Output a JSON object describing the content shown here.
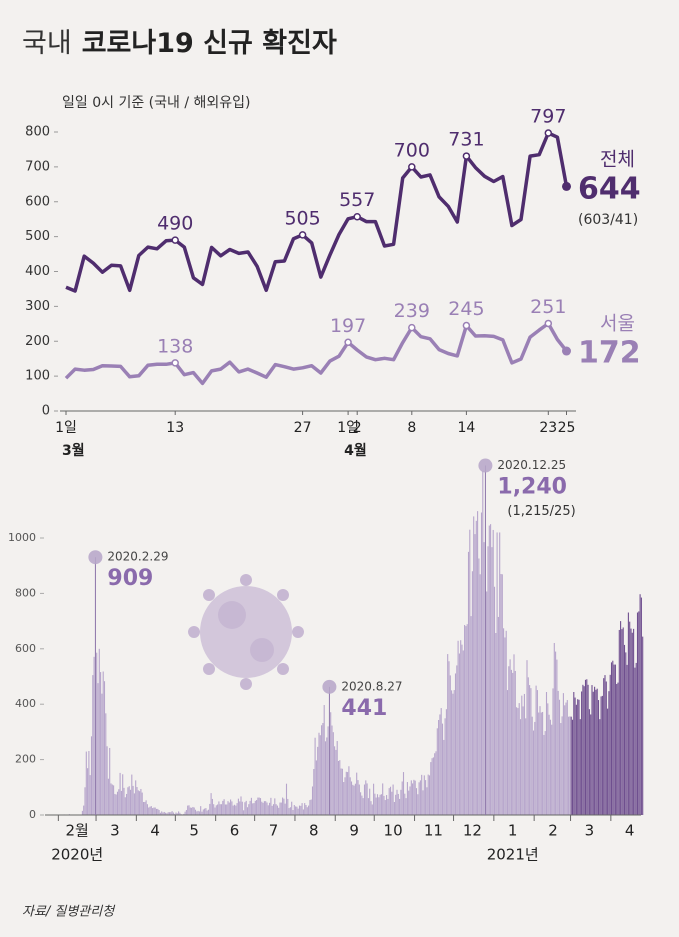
{
  "title_lead": "국내",
  "title": "코로나19 신규 확진자",
  "source": "자료/ 질병관리청",
  "chart_data": [
    {
      "type": "line",
      "subtitle": "일일 0시 기준 (국내 / 해외유입)",
      "categories": [
        "1일",
        null,
        null,
        null,
        null,
        null,
        null,
        null,
        null,
        null,
        null,
        null,
        "13",
        null,
        null,
        null,
        null,
        null,
        null,
        null,
        null,
        null,
        null,
        null,
        null,
        null,
        "27",
        null,
        null,
        null,
        null,
        "1일",
        "2",
        null,
        null,
        null,
        null,
        null,
        "8",
        null,
        null,
        null,
        null,
        null,
        "14",
        null,
        null,
        null,
        null,
        null,
        null,
        null,
        null,
        "23",
        null,
        "25"
      ],
      "months": [
        "3월",
        "4월"
      ],
      "ylim": [
        0,
        800
      ],
      "yticks": [
        0,
        100,
        200,
        300,
        400,
        500,
        600,
        700,
        800
      ],
      "series": [
        {
          "name": "전체",
          "color": "#4f2d6e",
          "breakdown": "(603/41)",
          "values": [
            355,
            344,
            444,
            424,
            398,
            418,
            416,
            346,
            446,
            470,
            465,
            488,
            490,
            470,
            382,
            363,
            469,
            445,
            463,
            452,
            456,
            415,
            346,
            428,
            430,
            494,
            505,
            482,
            384,
            447,
            506,
            551,
            557,
            543,
            543,
            473,
            478,
            668,
            700,
            671,
            677,
            614,
            587,
            542,
            731,
            698,
            673,
            658,
            672,
            532,
            549,
            731,
            735,
            797,
            785,
            644
          ],
          "value_labels": [
            null,
            null,
            null,
            null,
            null,
            null,
            null,
            null,
            null,
            null,
            null,
            null,
            "490",
            null,
            null,
            null,
            null,
            null,
            null,
            null,
            null,
            null,
            null,
            null,
            null,
            null,
            "505",
            null,
            null,
            null,
            null,
            null,
            "557",
            null,
            null,
            null,
            null,
            null,
            "700",
            null,
            null,
            null,
            null,
            null,
            "731",
            null,
            null,
            null,
            null,
            null,
            null,
            null,
            null,
            "797",
            null,
            null
          ]
        },
        {
          "name": "서울",
          "color": "#9a80b5",
          "values": [
            94,
            120,
            117,
            119,
            130,
            129,
            128,
            98,
            101,
            131,
            134,
            134,
            138,
            104,
            110,
            79,
            115,
            120,
            140,
            112,
            120,
            109,
            97,
            133,
            127,
            120,
            124,
            130,
            109,
            143,
            157,
            197,
            175,
            155,
            147,
            151,
            147,
            196,
            239,
            213,
            207,
            176,
            165,
            158,
            245,
            215,
            216,
            214,
            204,
            138,
            149,
            212,
            232,
            251,
            205,
            172
          ],
          "value_labels": [
            null,
            null,
            null,
            null,
            null,
            null,
            null,
            null,
            null,
            null,
            null,
            null,
            "138",
            null,
            null,
            null,
            null,
            null,
            null,
            null,
            null,
            null,
            null,
            null,
            null,
            null,
            null,
            null,
            null,
            null,
            null,
            "197",
            null,
            null,
            null,
            null,
            null,
            null,
            "239",
            null,
            null,
            null,
            null,
            null,
            "245",
            null,
            null,
            null,
            null,
            null,
            null,
            null,
            null,
            "251",
            null,
            null
          ]
        }
      ]
    },
    {
      "type": "bar",
      "color": "#b6a5cb",
      "ylim": [
        0,
        1300
      ],
      "yticks": [
        0,
        200,
        400,
        600,
        800,
        1000
      ],
      "months": [
        {
          "label": "2월",
          "year": "2020년",
          "values": [
            1,
            0,
            0,
            1,
            2,
            0,
            1,
            0,
            3,
            0,
            1,
            0,
            0,
            0,
            1,
            1,
            1,
            1,
            15,
            34,
            100,
            229,
            169,
            231,
            144,
            284,
            505,
            571,
            909
          ]
        },
        {
          "label": "3",
          "values": [
            586,
            476,
            600,
            516,
            438,
            518,
            483,
            367,
            248,
            131,
            242,
            114,
            110,
            107,
            76,
            74,
            84,
            93,
            152,
            87,
            147,
            98,
            64,
            76,
            100,
            104,
            91,
            146,
            105,
            78,
            125
          ]
        },
        {
          "label": "4",
          "values": [
            101,
            89,
            86,
            94,
            81,
            47,
            47,
            53,
            39,
            27,
            30,
            32,
            25,
            27,
            27,
            22,
            22,
            18,
            8,
            13,
            9,
            11,
            8,
            6,
            10,
            10,
            10,
            14,
            9,
            4
          ]
        },
        {
          "label": "5",
          "values": [
            9,
            6,
            13,
            8,
            3,
            2,
            4,
            12,
            18,
            34,
            35,
            27,
            26,
            29,
            27,
            19,
            13,
            15,
            13,
            32,
            12,
            20,
            23,
            25,
            16,
            19,
            40,
            79,
            58,
            39,
            27
          ]
        },
        {
          "label": "6",
          "values": [
            35,
            38,
            49,
            39,
            39,
            51,
            57,
            38,
            38,
            50,
            45,
            56,
            49,
            34,
            37,
            34,
            43,
            59,
            49,
            67,
            48,
            17,
            46,
            51,
            28,
            39,
            51,
            62,
            42,
            43
          ]
        },
        {
          "label": "7",
          "values": [
            51,
            54,
            63,
            63,
            61,
            48,
            44,
            50,
            50,
            45,
            35,
            44,
            62,
            33,
            39,
            60,
            39,
            34,
            26,
            45,
            45,
            63,
            59,
            41,
            113,
            58,
            25,
            28,
            48,
            18,
            36
          ]
        },
        {
          "label": "8",
          "values": [
            31,
            30,
            23,
            34,
            33,
            43,
            20,
            43,
            36,
            28,
            34,
            54,
            56,
            103,
            166,
            279,
            197,
            246,
            297,
            288,
            324,
            332,
            397,
            266,
            280,
            320,
            441,
            371,
            323,
            299,
            248
          ]
        },
        {
          "label": "9",
          "values": [
            235,
            267,
            195,
            198,
            168,
            167,
            119,
            136,
            156,
            155,
            176,
            136,
            121,
            109,
            106,
            113,
            153,
            126,
            110,
            82,
            70,
            61,
            110,
            125,
            114,
            61,
            95,
            50,
            38,
            113
          ]
        },
        {
          "label": "10",
          "values": [
            77,
            63,
            75,
            64,
            73,
            75,
            114,
            69,
            54,
            72,
            58,
            97,
            102,
            84,
            110,
            47,
            73,
            91,
            76,
            58,
            91,
            121,
            155,
            77,
            61,
            119,
            88,
            103,
            125,
            114,
            127
          ]
        },
        {
          "label": "11",
          "values": [
            124,
            97,
            75,
            118,
            125,
            145,
            89,
            143,
            126,
            100,
            146,
            143,
            191,
            205,
            208,
            223,
            230,
            313,
            343,
            363,
            386,
            330,
            271,
            349,
            382,
            581,
            555,
            504,
            450,
            438
          ]
        },
        {
          "label": "12",
          "values": [
            451,
            511,
            540,
            629,
            583,
            631,
            615,
            594,
            686,
            682,
            689,
            950,
            1030,
            718,
            880,
            1078,
            1014,
            1062,
            1097,
            926,
            869,
            1092,
            1241,
            985,
            1240,
            807,
            970,
            1045,
            1050,
            967,
            1029
          ]
        },
        {
          "label": "1",
          "year": "2021년",
          "values": [
            824,
            657,
            1020,
            715,
            1020,
            870,
            869,
            674,
            641,
            665,
            451,
            537,
            562,
            524,
            513,
            580,
            520,
            389,
            386,
            404,
            346,
            431,
            392,
            437,
            349,
            559,
            497,
            469,
            458,
            355,
            305
          ]
        },
        {
          "label": "2",
          "values": [
            336,
            467,
            451,
            370,
            393,
            370,
            372,
            289,
            303,
            444,
            403,
            362,
            344,
            326,
            457,
            621,
            590,
            561,
            448,
            416,
            332,
            356,
            440,
            396,
            406,
            415,
            355,
            356
          ]
        },
        {
          "label": "3",
          "color": "#6f4f8f",
          "values": [
            355,
            344,
            444,
            424,
            398,
            418,
            416,
            346,
            446,
            470,
            465,
            488,
            490,
            470,
            382,
            363,
            469,
            445,
            463,
            452,
            456,
            415,
            346,
            428,
            430,
            494,
            505,
            482,
            384,
            447,
            506
          ]
        },
        {
          "label": "4",
          "color": "#6f4f8f",
          "values": [
            551,
            557,
            543,
            543,
            473,
            478,
            668,
            700,
            671,
            677,
            614,
            587,
            542,
            731,
            698,
            673,
            658,
            672,
            532,
            549,
            731,
            735,
            797,
            785,
            644
          ]
        }
      ],
      "annotations": [
        {
          "date": "2020.2.29",
          "value": 909
        },
        {
          "date": "2020.8.27",
          "value": 441
        },
        {
          "date": "2020.12.25",
          "value": 1240,
          "label": "1,240",
          "breakdown": "(1,215/25)"
        }
      ]
    }
  ]
}
